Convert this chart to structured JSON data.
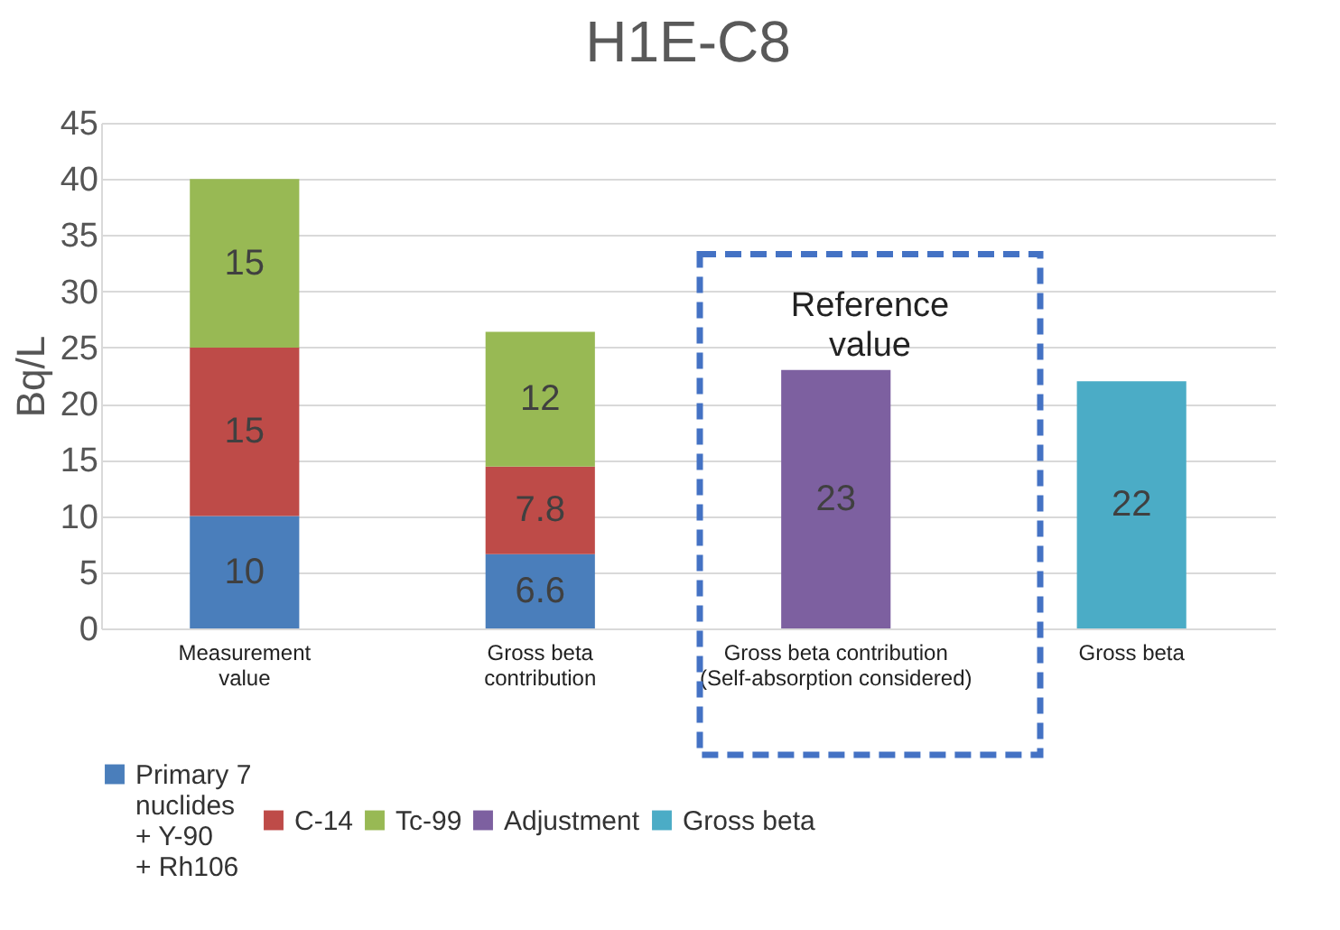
{
  "chart_data": {
    "type": "bar",
    "title": "H1E-C8",
    "ylabel": "Bq/L",
    "categories": [
      "Measurement\nvalue",
      "Gross beta\ncontribution",
      "Gross beta contribution\n(Self-absorption considered)",
      "Gross beta"
    ],
    "stacked": true,
    "series": [
      {
        "name": "Primary 7\nnuclides\n+ Y-90\n+ Rh106",
        "color": "#4a7ebb",
        "values": [
          10,
          6.6,
          null,
          null
        ]
      },
      {
        "name": "C-14",
        "color": "#be4b48",
        "values": [
          15,
          7.8,
          null,
          null
        ]
      },
      {
        "name": "Tc-99",
        "color": "#98b954",
        "values": [
          15,
          12,
          null,
          null
        ]
      },
      {
        "name": "Adjustment",
        "color": "#7d60a0",
        "values": [
          null,
          null,
          23,
          null
        ]
      },
      {
        "name": "Gross beta",
        "color": "#4bacc6",
        "values": [
          null,
          null,
          null,
          22
        ]
      }
    ],
    "ylim": [
      0,
      45
    ],
    "yticks": [
      0,
      5,
      10,
      15,
      20,
      25,
      30,
      35,
      40,
      45
    ],
    "grid": "y",
    "legend": "bottom",
    "data_labels": true,
    "annotations": [
      "Reference\nvalue"
    ]
  }
}
